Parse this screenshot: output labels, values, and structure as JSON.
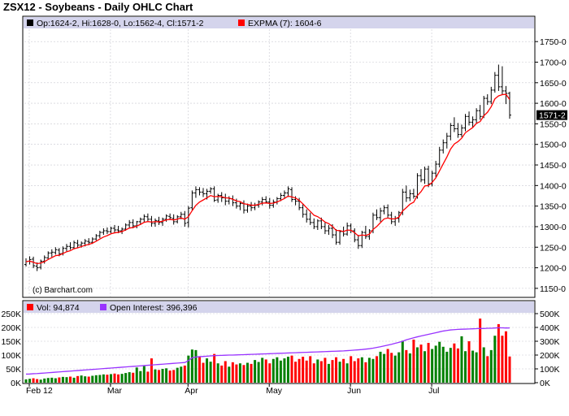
{
  "header": {
    "title": "ZSX12 - Soybeans - Daily OHLC Chart"
  },
  "price_panel": {
    "ohlc_label": "Op:1624-2, Hi:1628-0, Lo:1562-4, Cl:1571-2",
    "expma_label": "EXPMA (7): 1604-6",
    "copyright": "(c) Barchart.com",
    "last_price_tag": "1571-2",
    "y_ticks": [
      "1150-0",
      "1200-0",
      "1250-0",
      "1300-0",
      "1350-0",
      "1400-0",
      "1450-0",
      "1500-0",
      "1550-0",
      "1600-0",
      "1650-0",
      "1700-0",
      "1750-0"
    ]
  },
  "volume_panel": {
    "vol_label": "Vol: 94,874",
    "oi_label": "Open Interest: 396,396",
    "left_ticks": [
      "0K",
      "50K",
      "100K",
      "150K",
      "200K",
      "250K"
    ],
    "right_ticks": [
      "0K",
      "100K",
      "200K",
      "300K",
      "400K",
      "500K"
    ]
  },
  "x_axis": {
    "ticks": [
      "Feb 12",
      "Mar",
      "Apr",
      "May",
      "Jun",
      "Jul"
    ]
  },
  "colors": {
    "panel_header_bg": "#d4d4ec",
    "grid": "#c8c8d0",
    "ohlc_bar": "#000000",
    "expma_line": "#ff0000",
    "volume_up": "#008000",
    "volume_down": "#ff0000",
    "open_interest_line": "#9933ff",
    "ohlc_legend_marker": "#000000",
    "expma_legend_marker": "#ff0000",
    "vol_legend_marker": "#ff0000",
    "oi_legend_marker": "#9933ff"
  },
  "chart_data": {
    "type": "ohlc",
    "title": "ZSX12 - Soybeans - Daily OHLC Chart",
    "price_ylim": [
      1130,
      1780
    ],
    "volume_ylim": [
      0,
      250000
    ],
    "open_interest_ylim": [
      0,
      500000
    ],
    "x_ticks": [
      "Feb 12",
      "Mar",
      "Apr",
      "May",
      "Jun",
      "Jul"
    ],
    "grid": true,
    "price_series": [
      {
        "o": 1208,
        "h": 1223,
        "l": 1203,
        "c": 1215,
        "v": 12000,
        "oi": 62000
      },
      {
        "o": 1216,
        "h": 1228,
        "l": 1208,
        "c": 1220,
        "v": 14000,
        "oi": 63000
      },
      {
        "o": 1221,
        "h": 1227,
        "l": 1199,
        "c": 1205,
        "v": 16000,
        "oi": 65000
      },
      {
        "o": 1204,
        "h": 1213,
        "l": 1192,
        "c": 1200,
        "v": 13000,
        "oi": 66000
      },
      {
        "o": 1201,
        "h": 1220,
        "l": 1196,
        "c": 1216,
        "v": 11000,
        "oi": 68000
      },
      {
        "o": 1216,
        "h": 1230,
        "l": 1210,
        "c": 1225,
        "v": 15000,
        "oi": 70000
      },
      {
        "o": 1224,
        "h": 1240,
        "l": 1220,
        "c": 1236,
        "v": 17000,
        "oi": 72000
      },
      {
        "o": 1236,
        "h": 1245,
        "l": 1226,
        "c": 1238,
        "v": 18000,
        "oi": 74000
      },
      {
        "o": 1237,
        "h": 1250,
        "l": 1232,
        "c": 1244,
        "v": 16000,
        "oi": 76000
      },
      {
        "o": 1243,
        "h": 1248,
        "l": 1228,
        "c": 1234,
        "v": 19000,
        "oi": 78000
      },
      {
        "o": 1235,
        "h": 1252,
        "l": 1230,
        "c": 1247,
        "v": 21000,
        "oi": 80000
      },
      {
        "o": 1247,
        "h": 1258,
        "l": 1240,
        "c": 1252,
        "v": 20000,
        "oi": 82000
      },
      {
        "o": 1252,
        "h": 1262,
        "l": 1244,
        "c": 1249,
        "v": 22000,
        "oi": 84000
      },
      {
        "o": 1249,
        "h": 1266,
        "l": 1245,
        "c": 1261,
        "v": 18000,
        "oi": 86000
      },
      {
        "o": 1260,
        "h": 1268,
        "l": 1248,
        "c": 1255,
        "v": 24000,
        "oi": 88000
      },
      {
        "o": 1255,
        "h": 1264,
        "l": 1249,
        "c": 1260,
        "v": 26000,
        "oi": 90000
      },
      {
        "o": 1260,
        "h": 1270,
        "l": 1252,
        "c": 1265,
        "v": 23000,
        "oi": 92000
      },
      {
        "o": 1264,
        "h": 1272,
        "l": 1255,
        "c": 1262,
        "v": 22000,
        "oi": 94000
      },
      {
        "o": 1262,
        "h": 1274,
        "l": 1258,
        "c": 1270,
        "v": 25000,
        "oi": 96000
      },
      {
        "o": 1270,
        "h": 1282,
        "l": 1266,
        "c": 1278,
        "v": 27000,
        "oi": 98000
      },
      {
        "o": 1278,
        "h": 1290,
        "l": 1272,
        "c": 1286,
        "v": 28000,
        "oi": 100000
      },
      {
        "o": 1286,
        "h": 1296,
        "l": 1280,
        "c": 1290,
        "v": 30000,
        "oi": 102000
      },
      {
        "o": 1290,
        "h": 1298,
        "l": 1282,
        "c": 1288,
        "v": 29000,
        "oi": 104000
      },
      {
        "o": 1288,
        "h": 1300,
        "l": 1284,
        "c": 1296,
        "v": 31000,
        "oi": 106000
      },
      {
        "o": 1296,
        "h": 1304,
        "l": 1286,
        "c": 1292,
        "v": 33000,
        "oi": 108000
      },
      {
        "o": 1292,
        "h": 1302,
        "l": 1284,
        "c": 1290,
        "v": 30000,
        "oi": 110000
      },
      {
        "o": 1290,
        "h": 1298,
        "l": 1282,
        "c": 1294,
        "v": 32000,
        "oi": 112000
      },
      {
        "o": 1294,
        "h": 1308,
        "l": 1290,
        "c": 1304,
        "v": 35000,
        "oi": 114000
      },
      {
        "o": 1304,
        "h": 1316,
        "l": 1298,
        "c": 1310,
        "v": 38000,
        "oi": 116000
      },
      {
        "o": 1310,
        "h": 1318,
        "l": 1296,
        "c": 1302,
        "v": 36000,
        "oi": 118000
      },
      {
        "o": 1302,
        "h": 1314,
        "l": 1296,
        "c": 1312,
        "v": 55000,
        "oi": 120000
      },
      {
        "o": 1312,
        "h": 1322,
        "l": 1304,
        "c": 1318,
        "v": 42000,
        "oi": 122000
      },
      {
        "o": 1318,
        "h": 1330,
        "l": 1310,
        "c": 1325,
        "v": 60000,
        "oi": 124000
      },
      {
        "o": 1324,
        "h": 1332,
        "l": 1312,
        "c": 1318,
        "v": 40000,
        "oi": 126000
      },
      {
        "o": 1318,
        "h": 1326,
        "l": 1300,
        "c": 1308,
        "v": 88000,
        "oi": 128000
      },
      {
        "o": 1308,
        "h": 1320,
        "l": 1300,
        "c": 1315,
        "v": 48000,
        "oi": 130000
      },
      {
        "o": 1314,
        "h": 1324,
        "l": 1304,
        "c": 1310,
        "v": 46000,
        "oi": 132000
      },
      {
        "o": 1310,
        "h": 1322,
        "l": 1302,
        "c": 1318,
        "v": 50000,
        "oi": 134000
      },
      {
        "o": 1318,
        "h": 1330,
        "l": 1312,
        "c": 1326,
        "v": 52000,
        "oi": 136000
      },
      {
        "o": 1325,
        "h": 1332,
        "l": 1316,
        "c": 1322,
        "v": 44000,
        "oi": 138000
      },
      {
        "o": 1320,
        "h": 1330,
        "l": 1305,
        "c": 1312,
        "v": 46000,
        "oi": 140000
      },
      {
        "o": 1312,
        "h": 1328,
        "l": 1308,
        "c": 1324,
        "v": 54000,
        "oi": 142000
      },
      {
        "o": 1324,
        "h": 1336,
        "l": 1318,
        "c": 1330,
        "v": 58000,
        "oi": 144000
      },
      {
        "o": 1330,
        "h": 1338,
        "l": 1300,
        "c": 1308,
        "v": 62000,
        "oi": 146000
      },
      {
        "o": 1310,
        "h": 1350,
        "l": 1298,
        "c": 1345,
        "v": 98000,
        "oi": 160000
      },
      {
        "o": 1346,
        "h": 1388,
        "l": 1340,
        "c": 1382,
        "v": 120000,
        "oi": 180000
      },
      {
        "o": 1382,
        "h": 1398,
        "l": 1370,
        "c": 1390,
        "v": 118000,
        "oi": 186000
      },
      {
        "o": 1390,
        "h": 1396,
        "l": 1376,
        "c": 1384,
        "v": 96000,
        "oi": 188000
      },
      {
        "o": 1384,
        "h": 1394,
        "l": 1372,
        "c": 1380,
        "v": 72000,
        "oi": 190000
      },
      {
        "o": 1380,
        "h": 1392,
        "l": 1366,
        "c": 1386,
        "v": 88000,
        "oi": 192000
      },
      {
        "o": 1386,
        "h": 1396,
        "l": 1380,
        "c": 1392,
        "v": 76000,
        "oi": 194000
      },
      {
        "o": 1392,
        "h": 1398,
        "l": 1360,
        "c": 1364,
        "v": 104000,
        "oi": 196000
      },
      {
        "o": 1365,
        "h": 1380,
        "l": 1358,
        "c": 1376,
        "v": 70000,
        "oi": 197000
      },
      {
        "o": 1376,
        "h": 1384,
        "l": 1360,
        "c": 1370,
        "v": 62000,
        "oi": 198000
      },
      {
        "o": 1370,
        "h": 1380,
        "l": 1352,
        "c": 1362,
        "v": 78000,
        "oi": 199000
      },
      {
        "o": 1362,
        "h": 1374,
        "l": 1354,
        "c": 1368,
        "v": 58000,
        "oi": 200000
      },
      {
        "o": 1368,
        "h": 1376,
        "l": 1350,
        "c": 1358,
        "v": 74000,
        "oi": 200000
      },
      {
        "o": 1358,
        "h": 1368,
        "l": 1344,
        "c": 1350,
        "v": 66000,
        "oi": 201000
      },
      {
        "o": 1350,
        "h": 1362,
        "l": 1340,
        "c": 1356,
        "v": 70000,
        "oi": 202000
      },
      {
        "o": 1356,
        "h": 1364,
        "l": 1332,
        "c": 1340,
        "v": 64000,
        "oi": 203000
      },
      {
        "o": 1340,
        "h": 1356,
        "l": 1334,
        "c": 1350,
        "v": 72000,
        "oi": 204000
      },
      {
        "o": 1350,
        "h": 1360,
        "l": 1338,
        "c": 1346,
        "v": 68000,
        "oi": 205000
      },
      {
        "o": 1346,
        "h": 1358,
        "l": 1340,
        "c": 1352,
        "v": 82000,
        "oi": 206000
      },
      {
        "o": 1352,
        "h": 1364,
        "l": 1346,
        "c": 1360,
        "v": 75000,
        "oi": 207000
      },
      {
        "o": 1360,
        "h": 1372,
        "l": 1352,
        "c": 1366,
        "v": 90000,
        "oi": 208000
      },
      {
        "o": 1366,
        "h": 1374,
        "l": 1356,
        "c": 1360,
        "v": 84000,
        "oi": 209000
      },
      {
        "o": 1360,
        "h": 1370,
        "l": 1344,
        "c": 1352,
        "v": 70000,
        "oi": 210000
      },
      {
        "o": 1352,
        "h": 1366,
        "l": 1346,
        "c": 1360,
        "v": 86000,
        "oi": 211000
      },
      {
        "o": 1360,
        "h": 1372,
        "l": 1354,
        "c": 1368,
        "v": 92000,
        "oi": 212000
      },
      {
        "o": 1368,
        "h": 1382,
        "l": 1362,
        "c": 1376,
        "v": 80000,
        "oi": 213000
      },
      {
        "o": 1376,
        "h": 1388,
        "l": 1370,
        "c": 1382,
        "v": 88000,
        "oi": 214000
      },
      {
        "o": 1382,
        "h": 1398,
        "l": 1372,
        "c": 1392,
        "v": 94000,
        "oi": 215000
      },
      {
        "o": 1390,
        "h": 1396,
        "l": 1360,
        "c": 1366,
        "v": 98000,
        "oi": 216000
      },
      {
        "o": 1366,
        "h": 1374,
        "l": 1352,
        "c": 1362,
        "v": 76000,
        "oi": 217000
      },
      {
        "o": 1362,
        "h": 1370,
        "l": 1340,
        "c": 1346,
        "v": 86000,
        "oi": 218000
      },
      {
        "o": 1346,
        "h": 1356,
        "l": 1322,
        "c": 1330,
        "v": 94000,
        "oi": 219000
      },
      {
        "o": 1330,
        "h": 1342,
        "l": 1310,
        "c": 1318,
        "v": 80000,
        "oi": 220000
      },
      {
        "o": 1318,
        "h": 1334,
        "l": 1304,
        "c": 1310,
        "v": 96000,
        "oi": 221000
      },
      {
        "o": 1310,
        "h": 1320,
        "l": 1294,
        "c": 1300,
        "v": 70000,
        "oi": 222000
      },
      {
        "o": 1300,
        "h": 1318,
        "l": 1292,
        "c": 1314,
        "v": 84000,
        "oi": 223000
      },
      {
        "o": 1314,
        "h": 1322,
        "l": 1294,
        "c": 1300,
        "v": 78000,
        "oi": 224000
      },
      {
        "o": 1300,
        "h": 1310,
        "l": 1282,
        "c": 1290,
        "v": 90000,
        "oi": 225000
      },
      {
        "o": 1290,
        "h": 1304,
        "l": 1280,
        "c": 1296,
        "v": 68000,
        "oi": 226000
      },
      {
        "o": 1296,
        "h": 1306,
        "l": 1272,
        "c": 1280,
        "v": 82000,
        "oi": 227000
      },
      {
        "o": 1280,
        "h": 1294,
        "l": 1256,
        "c": 1262,
        "v": 92000,
        "oi": 228000
      },
      {
        "o": 1262,
        "h": 1292,
        "l": 1256,
        "c": 1288,
        "v": 76000,
        "oi": 229000
      },
      {
        "o": 1288,
        "h": 1300,
        "l": 1276,
        "c": 1282,
        "v": 86000,
        "oi": 230000
      },
      {
        "o": 1282,
        "h": 1310,
        "l": 1278,
        "c": 1302,
        "v": 70000,
        "oi": 232000
      },
      {
        "o": 1302,
        "h": 1308,
        "l": 1284,
        "c": 1290,
        "v": 96000,
        "oi": 234000
      },
      {
        "o": 1290,
        "h": 1296,
        "l": 1262,
        "c": 1268,
        "v": 78000,
        "oi": 236000
      },
      {
        "o": 1268,
        "h": 1280,
        "l": 1246,
        "c": 1254,
        "v": 88000,
        "oi": 238000
      },
      {
        "o": 1254,
        "h": 1290,
        "l": 1248,
        "c": 1286,
        "v": 92000,
        "oi": 240000
      },
      {
        "o": 1286,
        "h": 1302,
        "l": 1270,
        "c": 1276,
        "v": 74000,
        "oi": 243000
      },
      {
        "o": 1276,
        "h": 1294,
        "l": 1268,
        "c": 1290,
        "v": 90000,
        "oi": 246000
      },
      {
        "o": 1290,
        "h": 1334,
        "l": 1284,
        "c": 1328,
        "v": 86000,
        "oi": 250000
      },
      {
        "o": 1328,
        "h": 1342,
        "l": 1316,
        "c": 1322,
        "v": 96000,
        "oi": 255000
      },
      {
        "o": 1322,
        "h": 1346,
        "l": 1312,
        "c": 1338,
        "v": 112000,
        "oi": 260000
      },
      {
        "o": 1338,
        "h": 1352,
        "l": 1330,
        "c": 1346,
        "v": 104000,
        "oi": 266000
      },
      {
        "o": 1346,
        "h": 1354,
        "l": 1322,
        "c": 1328,
        "v": 122000,
        "oi": 272000
      },
      {
        "o": 1328,
        "h": 1336,
        "l": 1306,
        "c": 1312,
        "v": 108000,
        "oi": 278000
      },
      {
        "o": 1312,
        "h": 1326,
        "l": 1302,
        "c": 1320,
        "v": 98000,
        "oi": 285000
      },
      {
        "o": 1320,
        "h": 1338,
        "l": 1310,
        "c": 1334,
        "v": 110000,
        "oi": 292000
      },
      {
        "o": 1334,
        "h": 1392,
        "l": 1328,
        "c": 1384,
        "v": 152000,
        "oi": 300000
      },
      {
        "o": 1384,
        "h": 1400,
        "l": 1360,
        "c": 1370,
        "v": 118000,
        "oi": 310000
      },
      {
        "o": 1370,
        "h": 1390,
        "l": 1362,
        "c": 1380,
        "v": 106000,
        "oi": 318000
      },
      {
        "o": 1380,
        "h": 1392,
        "l": 1368,
        "c": 1374,
        "v": 156000,
        "oi": 325000
      },
      {
        "o": 1374,
        "h": 1430,
        "l": 1368,
        "c": 1424,
        "v": 128000,
        "oi": 332000
      },
      {
        "o": 1424,
        "h": 1440,
        "l": 1408,
        "c": 1414,
        "v": 138000,
        "oi": 338000
      },
      {
        "o": 1414,
        "h": 1446,
        "l": 1404,
        "c": 1440,
        "v": 114000,
        "oi": 344000
      },
      {
        "o": 1440,
        "h": 1448,
        "l": 1396,
        "c": 1404,
        "v": 144000,
        "oi": 350000
      },
      {
        "o": 1404,
        "h": 1436,
        "l": 1398,
        "c": 1430,
        "v": 122000,
        "oi": 356000
      },
      {
        "o": 1430,
        "h": 1460,
        "l": 1420,
        "c": 1452,
        "v": 134000,
        "oi": 362000
      },
      {
        "o": 1452,
        "h": 1494,
        "l": 1444,
        "c": 1486,
        "v": 148000,
        "oi": 368000
      },
      {
        "o": 1486,
        "h": 1512,
        "l": 1478,
        "c": 1504,
        "v": 130000,
        "oi": 374000
      },
      {
        "o": 1504,
        "h": 1528,
        "l": 1490,
        "c": 1520,
        "v": 112000,
        "oi": 378000
      },
      {
        "o": 1520,
        "h": 1552,
        "l": 1510,
        "c": 1546,
        "v": 126000,
        "oi": 382000
      },
      {
        "o": 1546,
        "h": 1566,
        "l": 1530,
        "c": 1538,
        "v": 142000,
        "oi": 384000
      },
      {
        "o": 1538,
        "h": 1552,
        "l": 1516,
        "c": 1524,
        "v": 124000,
        "oi": 386000
      },
      {
        "o": 1524,
        "h": 1548,
        "l": 1518,
        "c": 1540,
        "v": 168000,
        "oi": 387000
      },
      {
        "o": 1540,
        "h": 1574,
        "l": 1532,
        "c": 1568,
        "v": 114000,
        "oi": 388000
      },
      {
        "o": 1568,
        "h": 1580,
        "l": 1546,
        "c": 1554,
        "v": 150000,
        "oi": 389000
      },
      {
        "o": 1554,
        "h": 1568,
        "l": 1542,
        "c": 1560,
        "v": 116000,
        "oi": 390000
      },
      {
        "o": 1560,
        "h": 1588,
        "l": 1552,
        "c": 1582,
        "v": 110000,
        "oi": 391000
      },
      {
        "o": 1582,
        "h": 1596,
        "l": 1560,
        "c": 1568,
        "v": 232000,
        "oi": 393000
      },
      {
        "o": 1568,
        "h": 1618,
        "l": 1564,
        "c": 1612,
        "v": 128000,
        "oi": 392000
      },
      {
        "o": 1612,
        "h": 1622,
        "l": 1596,
        "c": 1604,
        "v": 96000,
        "oi": 394000
      },
      {
        "o": 1604,
        "h": 1640,
        "l": 1598,
        "c": 1632,
        "v": 118000,
        "oi": 394000
      },
      {
        "o": 1632,
        "h": 1676,
        "l": 1626,
        "c": 1668,
        "v": 170000,
        "oi": 396000
      },
      {
        "o": 1668,
        "h": 1694,
        "l": 1630,
        "c": 1640,
        "v": 212000,
        "oi": 398000
      },
      {
        "o": 1640,
        "h": 1690,
        "l": 1620,
        "c": 1630,
        "v": 170000,
        "oi": 397000
      },
      {
        "o": 1630,
        "h": 1642,
        "l": 1598,
        "c": 1624,
        "v": 186000,
        "oi": 396000
      },
      {
        "o": 1624.25,
        "h": 1628,
        "l": 1562.5,
        "c": 1571.25,
        "v": 94874,
        "oi": 396396
      }
    ],
    "series": [
      {
        "name": "EXPMA (7)",
        "type": "line"
      },
      {
        "name": "Vol",
        "type": "bar"
      },
      {
        "name": "Open Interest",
        "type": "line"
      }
    ]
  }
}
